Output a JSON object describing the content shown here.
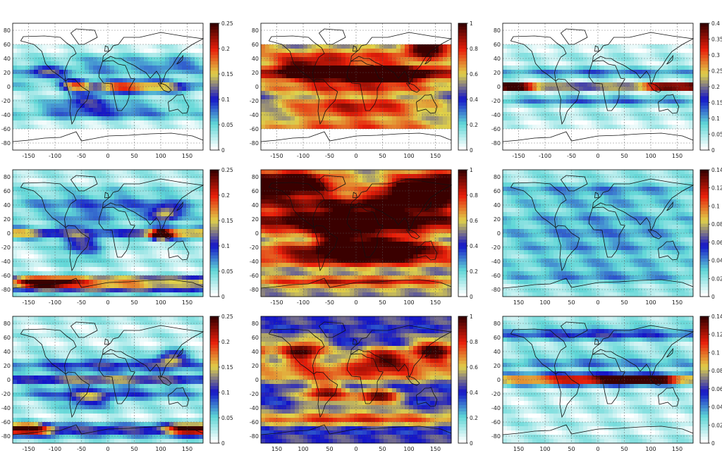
{
  "colormap": [
    "#ffffff",
    "#5fd6d6",
    "#1414c8",
    "#e0d24a",
    "#e81e0a",
    "#3a0000"
  ],
  "chart_data": [
    {
      "type": "heatmap",
      "panel": "r1c1",
      "x_ticks": [
        "-150",
        "-100",
        "-50",
        "0",
        "50",
        "100",
        "150"
      ],
      "y_ticks": [
        "80",
        "60",
        "40",
        "20",
        "0",
        "-20",
        "-40",
        "-60",
        "-80"
      ],
      "colorbar": [
        "0.25",
        "0.2",
        "0.15",
        "0.1",
        "0.05",
        "0"
      ],
      "blobs": [
        [
          -120,
          20,
          30,
          8,
          0.35
        ],
        [
          -60,
          2,
          20,
          6,
          0.55
        ],
        [
          20,
          0,
          40,
          6,
          0.55
        ],
        [
          100,
          0,
          50,
          7,
          0.45
        ],
        [
          -40,
          -20,
          40,
          10,
          0.25
        ],
        [
          0,
          30,
          60,
          10,
          0.2
        ],
        [
          0,
          -35,
          120,
          8,
          0.25
        ],
        [
          130,
          30,
          40,
          8,
          0.25
        ]
      ],
      "band": [
        -60,
        60
      ]
    },
    {
      "type": "heatmap",
      "panel": "r1c2",
      "x_ticks": [
        "-150",
        "-100",
        "-50",
        "0",
        "50",
        "100",
        "150"
      ],
      "y_ticks": [
        "80",
        "60",
        "40",
        "20",
        "0",
        "-20",
        "-40",
        "-60",
        "-80"
      ],
      "colorbar": [
        "1",
        "0.8",
        "0.6",
        "0.4",
        "0.2",
        "0"
      ],
      "blobs": [
        [
          0,
          15,
          120,
          8,
          0.62
        ],
        [
          60,
          20,
          60,
          8,
          0.7
        ],
        [
          -100,
          25,
          50,
          10,
          0.55
        ],
        [
          0,
          -5,
          160,
          6,
          0.35
        ],
        [
          0,
          -30,
          120,
          10,
          0.5
        ],
        [
          0,
          -55,
          180,
          6,
          0.38
        ],
        [
          0,
          45,
          160,
          10,
          0.35
        ],
        [
          140,
          55,
          30,
          8,
          0.6
        ]
      ],
      "band": [
        -60,
        60
      ],
      "base": 0.4
    },
    {
      "type": "heatmap",
      "panel": "r1c3",
      "x_ticks": [
        "-150",
        "-100",
        "-50",
        "0",
        "50",
        "100",
        "150"
      ],
      "y_ticks": [
        "80",
        "60",
        "40",
        "20",
        "0",
        "-20",
        "-40",
        "-60",
        "-80"
      ],
      "colorbar": [
        "0.4",
        "0.35",
        "0.3",
        "0.25",
        "0.2",
        "0.15",
        "0.1",
        "0.05",
        "0"
      ],
      "blobs": [
        [
          0,
          0,
          180,
          3,
          0.65
        ],
        [
          140,
          0,
          40,
          3,
          0.85
        ],
        [
          -150,
          0,
          30,
          3,
          0.8
        ],
        [
          0,
          20,
          180,
          6,
          0.2
        ],
        [
          0,
          -20,
          180,
          6,
          0.2
        ]
      ],
      "band": [
        -60,
        60
      ]
    },
    {
      "type": "heatmap",
      "panel": "r2c1",
      "x_ticks": [
        "-150",
        "-100",
        "-50",
        "0",
        "50",
        "100",
        "150"
      ],
      "y_ticks": [
        "80",
        "60",
        "40",
        "20",
        "0",
        "-20",
        "-40",
        "-60",
        "-80"
      ],
      "colorbar": [
        "0.25",
        "0.2",
        "0.15",
        "0.1",
        "0.05",
        "0"
      ],
      "blobs": [
        [
          100,
          -3,
          12,
          4,
          1.0
        ],
        [
          100,
          0,
          60,
          6,
          0.55
        ],
        [
          -150,
          0,
          50,
          6,
          0.4
        ],
        [
          0,
          -75,
          180,
          6,
          0.6
        ],
        [
          -120,
          -70,
          40,
          5,
          0.75
        ],
        [
          0,
          -65,
          180,
          4,
          0.4
        ],
        [
          110,
          28,
          20,
          8,
          0.45
        ],
        [
          -50,
          -10,
          30,
          20,
          0.35
        ],
        [
          0,
          40,
          150,
          15,
          0.22
        ]
      ],
      "band": [
        -90,
        90
      ]
    },
    {
      "type": "heatmap",
      "panel": "r2c2",
      "x_ticks": [
        "-150",
        "-100",
        "-50",
        "0",
        "50",
        "100",
        "150"
      ],
      "y_ticks": [
        "80",
        "60",
        "40",
        "20",
        "0",
        "-20",
        "-40",
        "-60",
        "-80"
      ],
      "colorbar": [
        "1",
        "0.8",
        "0.6",
        "0.4",
        "0.2",
        "0"
      ],
      "blobs": [
        [
          0,
          15,
          150,
          10,
          0.78
        ],
        [
          -120,
          70,
          60,
          12,
          0.72
        ],
        [
          120,
          60,
          50,
          15,
          0.78
        ],
        [
          0,
          -30,
          150,
          12,
          0.55
        ],
        [
          0,
          -70,
          180,
          5,
          0.38
        ],
        [
          0,
          40,
          150,
          10,
          0.45
        ],
        [
          -30,
          -10,
          30,
          15,
          0.42
        ],
        [
          60,
          -20,
          40,
          10,
          0.65
        ]
      ],
      "band": [
        -90,
        90
      ],
      "base": 0.5
    },
    {
      "type": "heatmap",
      "panel": "r2c3",
      "x_ticks": [
        "150",
        "100",
        "50",
        "0",
        "50",
        "100",
        "150"
      ],
      "y_ticks": [
        "80",
        "60",
        "40",
        "20",
        "0",
        "-20",
        "-40",
        "-60",
        "-80"
      ],
      "colorbar": [
        "0.14",
        "0.12",
        "0.1",
        "0.08",
        "0.06",
        "0.04",
        "0.02",
        "0"
      ],
      "blobs": [
        [
          0,
          0,
          180,
          40,
          0.18
        ],
        [
          0,
          60,
          180,
          10,
          0.12
        ],
        [
          0,
          -60,
          180,
          10,
          0.12
        ]
      ],
      "band": [
        -90,
        90
      ]
    },
    {
      "type": "heatmap",
      "panel": "r3c1",
      "x_ticks": [
        "-150",
        "-100",
        "-50",
        "0",
        "50",
        "100",
        "150"
      ],
      "y_ticks": [
        "80",
        "60",
        "40",
        "20",
        "0",
        "-20",
        "-40",
        "-60",
        "-80"
      ],
      "colorbar": [
        "0.25",
        "0.2",
        "0.15",
        "0.1",
        "0.05",
        "0"
      ],
      "blobs": [
        [
          0,
          0,
          180,
          5,
          0.45
        ],
        [
          0,
          20,
          150,
          8,
          0.3
        ],
        [
          -150,
          -70,
          30,
          6,
          0.7
        ],
        [
          150,
          -70,
          30,
          6,
          0.65
        ],
        [
          0,
          -72,
          180,
          6,
          0.42
        ],
        [
          0,
          -20,
          150,
          8,
          0.25
        ],
        [
          120,
          30,
          20,
          8,
          0.45
        ],
        [
          -40,
          -30,
          30,
          10,
          0.3
        ]
      ],
      "band": [
        -90,
        90
      ]
    },
    {
      "type": "heatmap",
      "panel": "r3c2",
      "x_ticks": [
        "150",
        "100",
        "50",
        "0",
        "50",
        "100",
        "150"
      ],
      "y_ticks": [
        "80",
        "60",
        "40",
        "20",
        "0",
        "-20",
        "-40",
        "-60",
        "-80"
      ],
      "colorbar": [
        "1",
        "0.8",
        "0.6",
        "0.4",
        "0.2",
        "0"
      ],
      "blobs": [
        [
          -100,
          40,
          30,
          12,
          0.6
        ],
        [
          150,
          40,
          30,
          12,
          0.6
        ],
        [
          50,
          30,
          40,
          10,
          0.55
        ],
        [
          -60,
          -20,
          30,
          10,
          0.5
        ],
        [
          40,
          -25,
          30,
          8,
          0.55
        ],
        [
          0,
          -55,
          180,
          6,
          0.42
        ],
        [
          0,
          10,
          180,
          8,
          0.38
        ]
      ],
      "band": [
        -90,
        90
      ],
      "base": 0.42
    },
    {
      "type": "heatmap",
      "panel": "r3c3",
      "x_ticks": [
        "150",
        "100",
        "50",
        "0",
        "50",
        "100",
        "150"
      ],
      "y_ticks": [
        "80",
        "60",
        "40",
        "20",
        "0",
        "-20",
        "-40",
        "-60",
        "-80"
      ],
      "colorbar": [
        "0.14",
        "0.12",
        "0.1",
        "0.08",
        "0.06",
        "0.04",
        "0.02",
        "0"
      ],
      "blobs": [
        [
          0,
          0,
          180,
          3,
          0.78
        ],
        [
          80,
          0,
          40,
          3,
          0.95
        ],
        [
          0,
          6,
          180,
          3,
          0.45
        ],
        [
          0,
          -6,
          180,
          3,
          0.4
        ],
        [
          0,
          25,
          180,
          8,
          0.2
        ],
        [
          0,
          65,
          180,
          8,
          0.3
        ]
      ],
      "band": [
        -90,
        90
      ]
    }
  ]
}
